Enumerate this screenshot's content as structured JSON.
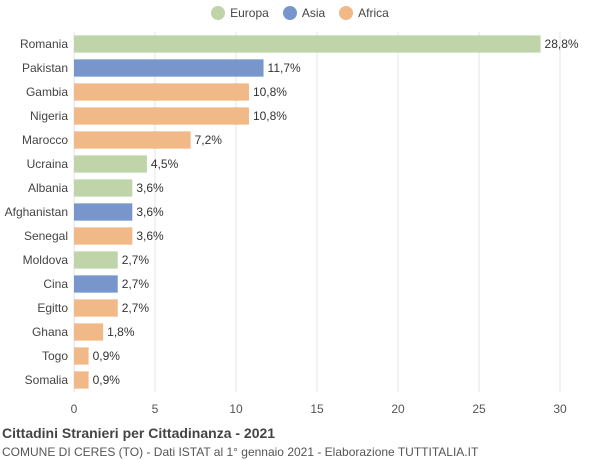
{
  "chart_data": {
    "type": "bar",
    "orientation": "horizontal",
    "categories": [
      "Romania",
      "Pakistan",
      "Gambia",
      "Nigeria",
      "Marocco",
      "Ucraina",
      "Albania",
      "Afghanistan",
      "Senegal",
      "Moldova",
      "Cina",
      "Egitto",
      "Ghana",
      "Togo",
      "Somalia"
    ],
    "values": [
      28.8,
      11.7,
      10.8,
      10.8,
      7.2,
      4.5,
      3.6,
      3.6,
      3.6,
      2.7,
      2.7,
      2.7,
      1.8,
      0.9,
      0.9
    ],
    "value_labels": [
      "28,8%",
      "11,7%",
      "10,8%",
      "10,8%",
      "7,2%",
      "4,5%",
      "3,6%",
      "3,6%",
      "3,6%",
      "2,7%",
      "2,7%",
      "2,7%",
      "1,8%",
      "0,9%",
      "0,9%"
    ],
    "groups": [
      "Europa",
      "Asia",
      "Africa",
      "Africa",
      "Africa",
      "Europa",
      "Europa",
      "Asia",
      "Africa",
      "Europa",
      "Asia",
      "Africa",
      "Africa",
      "Africa",
      "Africa"
    ],
    "legend": [
      {
        "name": "Europa",
        "color": "#c0d4aa"
      },
      {
        "name": "Asia",
        "color": "#7896cc"
      },
      {
        "name": "Africa",
        "color": "#f0b987"
      }
    ],
    "legend_position": "top-center",
    "xlim": [
      0,
      30
    ],
    "xticks": [
      0,
      5,
      10,
      15,
      20,
      25,
      30
    ],
    "grid": true,
    "title": "Cittadini Stranieri per Cittadinanza - 2021",
    "subtitle": "COMUNE DI CERES (TO) - Dati ISTAT al 1° gennaio 2021 - Elaborazione TUTTITALIA.IT"
  }
}
